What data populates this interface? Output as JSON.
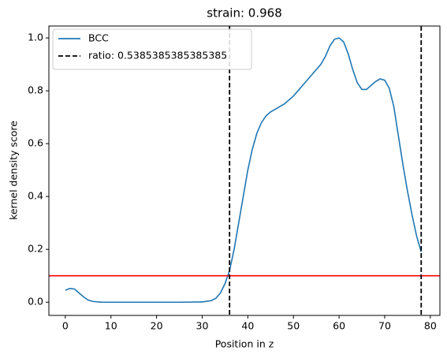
{
  "chart_data": {
    "type": "line",
    "title": "strain: 0.968",
    "x_label": "Position in z",
    "y_label": "kernel density score",
    "x": [
      0,
      1,
      2,
      3,
      4,
      5,
      6,
      8,
      10,
      15,
      20,
      25,
      30,
      32,
      33,
      34,
      35,
      36,
      37,
      38,
      39,
      40,
      41,
      42,
      43,
      44,
      45,
      46,
      47,
      48,
      50,
      52,
      54,
      56,
      57,
      58,
      59,
      60,
      61,
      62,
      63,
      64,
      65,
      66,
      67,
      68,
      69,
      70,
      71,
      72,
      73,
      74,
      75,
      76,
      77,
      78
    ],
    "series": [
      {
        "name": "BCC",
        "color": "#1f77b4",
        "values": [
          0.045,
          0.052,
          0.05,
          0.035,
          0.02,
          0.008,
          0.003,
          0,
          0,
          0,
          0,
          0,
          0.001,
          0.006,
          0.015,
          0.035,
          0.07,
          0.12,
          0.2,
          0.3,
          0.4,
          0.5,
          0.58,
          0.64,
          0.68,
          0.705,
          0.72,
          0.73,
          0.74,
          0.75,
          0.78,
          0.82,
          0.86,
          0.9,
          0.93,
          0.97,
          0.995,
          1.0,
          0.985,
          0.94,
          0.88,
          0.83,
          0.805,
          0.805,
          0.82,
          0.835,
          0.845,
          0.84,
          0.81,
          0.74,
          0.63,
          0.52,
          0.42,
          0.33,
          0.25,
          0.19
        ]
      }
    ],
    "vlines": {
      "name": "ratio: 0.5385385385385385",
      "color": "#000000",
      "values": [
        36,
        78
      ]
    },
    "hline": {
      "value": 0.1,
      "color": "#ff0000"
    },
    "xlim": [
      -3.6,
      82.1
    ],
    "ylim": [
      -0.05,
      1.045
    ],
    "xticks": [
      0,
      10,
      20,
      30,
      40,
      50,
      60,
      70,
      80
    ],
    "yticks": [
      {
        "value": 0,
        "label": "0.0"
      },
      0.2,
      0.4,
      0.6,
      0.8,
      {
        "value": 1,
        "label": "1.0"
      }
    ],
    "legend": "upper left"
  }
}
